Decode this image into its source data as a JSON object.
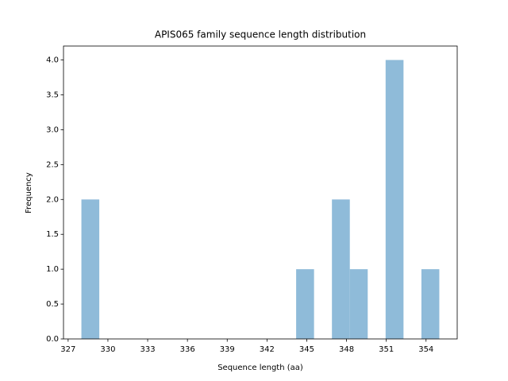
{
  "chart_data": {
    "type": "histogram",
    "title": "APIS065 family sequence length distribution",
    "x_label": "Sequence length (aa)",
    "y_label": "Frequency",
    "bins": [
      328,
      329.35,
      330.7,
      332.05,
      333.4,
      334.75,
      336.1,
      337.45,
      338.8,
      340.15,
      341.5,
      342.85,
      344.2,
      345.55,
      346.9,
      348.25,
      349.6,
      350.95,
      352.3,
      353.65,
      355
    ],
    "values": [
      2,
      0,
      0,
      0,
      0,
      0,
      0,
      0,
      0,
      0,
      0,
      0,
      1,
      0,
      2,
      1,
      0,
      4,
      0,
      1
    ],
    "color": "#8fbbd9",
    "xlim": [
      326.65,
      356.35
    ],
    "xticks": [
      327,
      330,
      333,
      336,
      339,
      342,
      345,
      348,
      351,
      354
    ],
    "ylim": [
      0,
      4.2
    ],
    "yticks": [
      {
        "value": 0,
        "label": "0.0"
      },
      {
        "value": 0.5,
        "label": "0.5"
      },
      {
        "value": 1,
        "label": "1.0"
      },
      {
        "value": 1.5,
        "label": "1.5"
      },
      {
        "value": 2,
        "label": "2.0"
      },
      {
        "value": 2.5,
        "label": "2.5"
      },
      {
        "value": 3,
        "label": "3.0"
      },
      {
        "value": 3.5,
        "label": "3.5"
      },
      {
        "value": 4,
        "label": "4.0"
      }
    ]
  }
}
